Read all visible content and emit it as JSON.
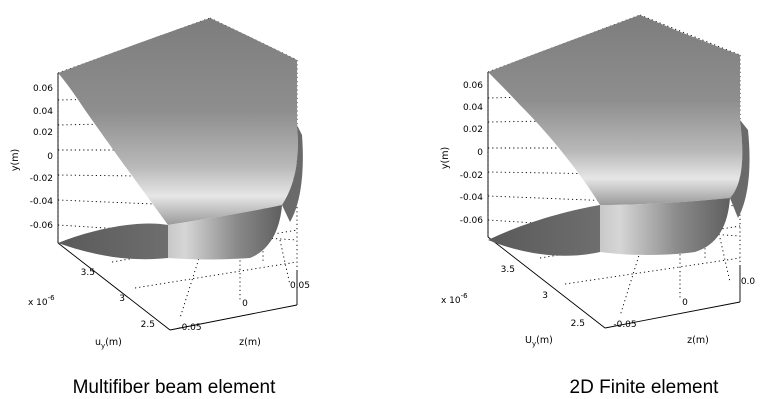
{
  "chart_data": [
    {
      "type": "surface",
      "caption": "Multifiber beam element",
      "xlabel": "u",
      "xlabel_sub": "y",
      "xlabel_unit": "(m)",
      "ylabel": "y(m)",
      "zlabel": "z(m)",
      "x_exponent_base": "x 10",
      "x_exponent": "-6",
      "x_ticks": [
        "3.5",
        "3",
        "2.5"
      ],
      "y_ticks": [
        "0.06",
        "0.04",
        "0.02",
        "0",
        "-0.02",
        "-0.04",
        "-0.06"
      ],
      "z_ticks": [
        "-0.05",
        "0",
        "0.05"
      ],
      "grid": true
    },
    {
      "type": "surface",
      "caption": "2D Finite element",
      "xlabel": "U",
      "xlabel_sub": "y",
      "xlabel_unit": "(m)",
      "ylabel": "y(m)",
      "zlabel": "z(m)",
      "x_exponent_base": "x 10",
      "x_exponent": "-6",
      "x_ticks": [
        "3.5",
        "3",
        "2.5"
      ],
      "y_ticks": [
        "0.06",
        "0.04",
        "0.02",
        "0",
        "-0.02",
        "-0.04",
        "-0.06"
      ],
      "z_ticks": [
        "-0.05",
        "0",
        "0.0"
      ],
      "grid": true
    }
  ]
}
